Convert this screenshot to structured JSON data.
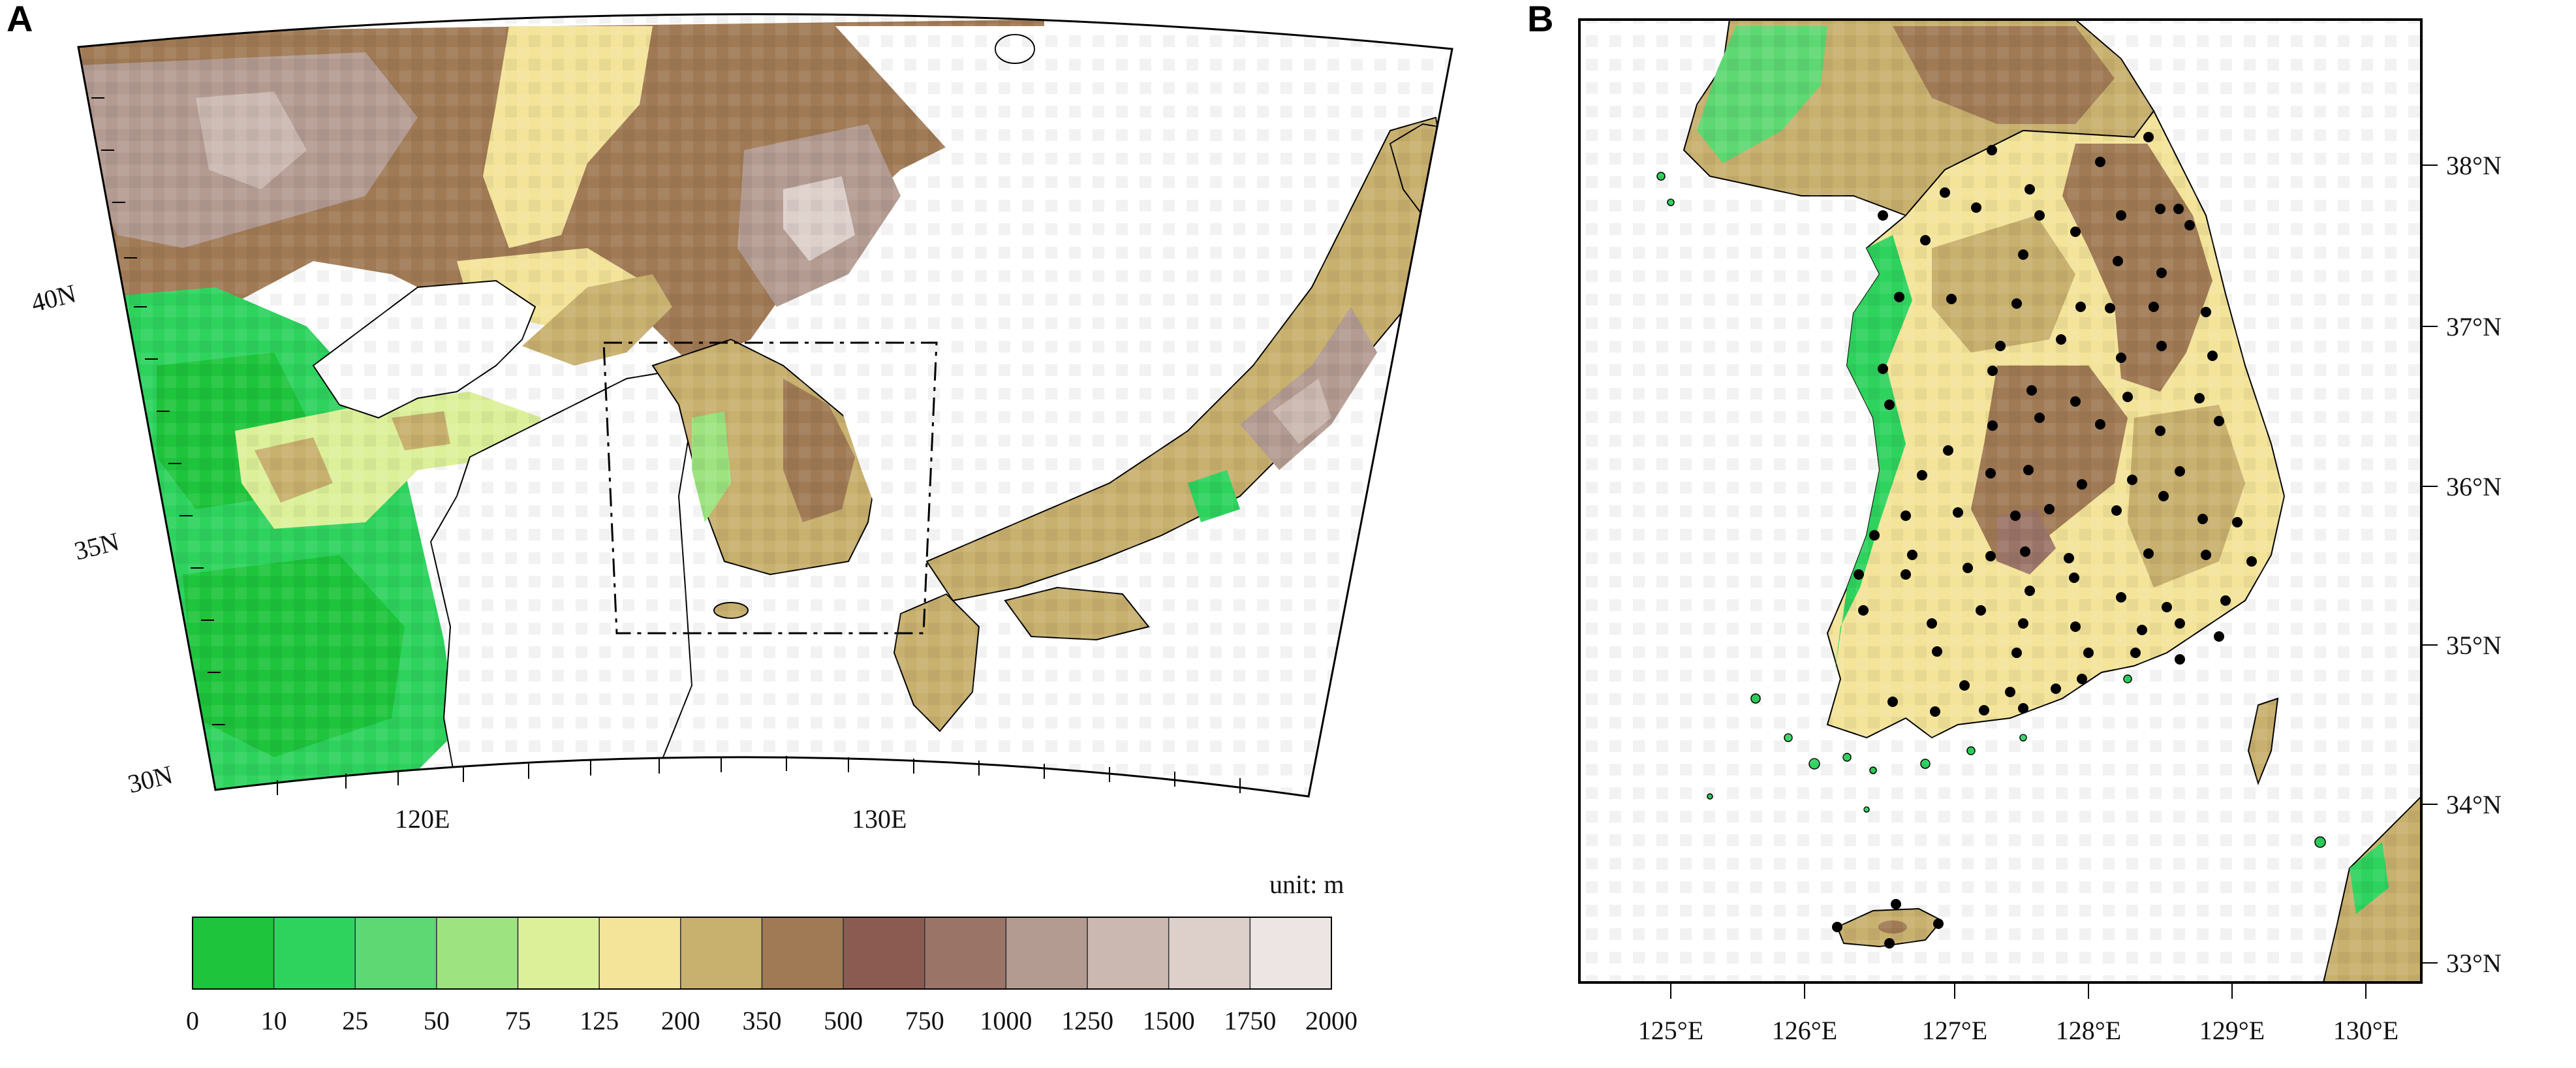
{
  "panel_a": {
    "letter": "A",
    "lat_labels": [
      "40N",
      "35N",
      "30N"
    ],
    "lon_labels": [
      "120E",
      "130E"
    ],
    "unit_label": "unit: m",
    "colorbar": {
      "boundaries": [
        "0",
        "10",
        "25",
        "50",
        "75",
        "125",
        "200",
        "350",
        "500",
        "750",
        "1000",
        "1250",
        "1500",
        "1750",
        "2000"
      ],
      "colors": [
        "#1ec43c",
        "#2ed35e",
        "#5ed873",
        "#9de480",
        "#dcf09a",
        "#f3e49a",
        "#c8b06e",
        "#a07a55",
        "#8b5a50",
        "#9b7468",
        "#b39b91",
        "#cbb9b1",
        "#ddd0cb",
        "#ece5e3"
      ]
    },
    "colors": {
      "sea": "#ffffff",
      "lowland": "#33cc55",
      "highland": "#8b6a55",
      "coast": "#000000"
    }
  },
  "panel_b": {
    "letter": "B",
    "lat_labels": [
      "38°N",
      "37°N",
      "36°N",
      "35°N",
      "34°N",
      "33°N"
    ],
    "lon_labels": [
      "125°E",
      "126°E",
      "127°E",
      "128°E",
      "129°E",
      "130°E"
    ],
    "station_color": "#000000"
  }
}
